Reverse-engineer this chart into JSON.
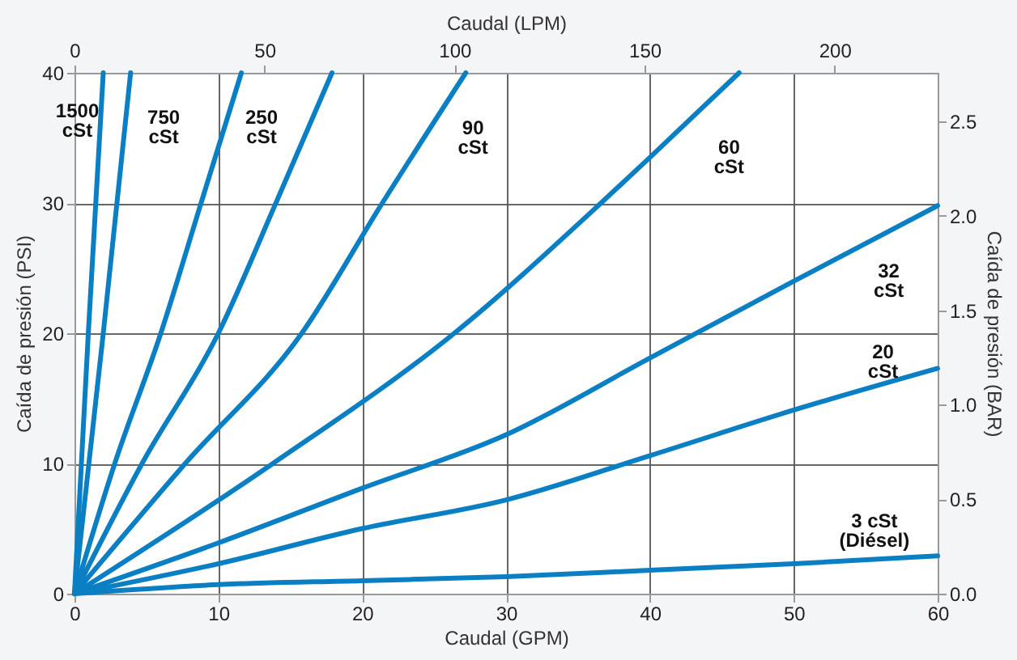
{
  "chart_data": {
    "type": "line",
    "xlabel": "Caudal (GPM)",
    "ylabel": "Caída de presión (PSI)",
    "y2label": "Caída de presión (BAR)",
    "x2label": "Caudal (LPM)",
    "xlim": [
      0,
      60
    ],
    "xticks": [
      0,
      10,
      20,
      30,
      40,
      50,
      60
    ],
    "ylim": [
      0,
      40
    ],
    "yticks": [
      0,
      10,
      20,
      30,
      40
    ],
    "x2lim": [
      0,
      227.1
    ],
    "x2ticks": [
      0,
      50,
      100,
      150,
      200
    ],
    "y2lim": [
      0,
      2.758
    ],
    "y2ticks": [
      {
        "value": 0,
        "label": "0.0"
      },
      {
        "value": 0.5,
        "label": "0.5"
      },
      {
        "value": 1,
        "label": "1.0"
      },
      {
        "value": 1.5,
        "label": "1.5"
      },
      {
        "value": 2,
        "label": "2.0"
      },
      {
        "value": 2.5,
        "label": "2.5"
      }
    ],
    "grid": true,
    "legend": false,
    "marker": "none",
    "line_style": "solid",
    "series": [
      {
        "color": "#0a7fc4",
        "x": [
          0,
          0.96,
          2.0
        ],
        "values": [
          0,
          20,
          40
        ]
      },
      {
        "color": "#0a7fc4",
        "x": [
          0,
          1.0,
          2.0,
          3.9
        ],
        "values": [
          0,
          10,
          20,
          40
        ]
      },
      {
        "color": "#0a7fc4",
        "x": [
          0,
          2.8,
          6.0,
          8.8,
          11.6
        ],
        "values": [
          0,
          10,
          20,
          30,
          40
        ]
      },
      {
        "color": "#0a7fc4",
        "x": [
          0,
          4.7,
          10.0,
          14.0,
          17.9
        ],
        "values": [
          0,
          10,
          20,
          30,
          40
        ]
      },
      {
        "color": "#0a7fc4",
        "x": [
          0,
          7.7,
          15.8,
          21.4,
          27.2
        ],
        "values": [
          0,
          10,
          20,
          30,
          40
        ]
      },
      {
        "color": "#0a7fc4",
        "x": [
          0,
          13.8,
          26.4,
          36.6,
          40,
          46.2
        ],
        "values": [
          0,
          10,
          20,
          30,
          33.5,
          40
        ]
      },
      {
        "color": "#0a7fc4",
        "x": [
          0,
          10,
          20,
          30,
          40,
          50,
          60
        ],
        "values": [
          0,
          3.9,
          8.1,
          12.2,
          18.1,
          24.0,
          29.8
        ]
      },
      {
        "color": "#0a7fc4",
        "x": [
          0,
          10,
          20,
          30,
          40,
          50,
          60
        ],
        "values": [
          0,
          2.3,
          5.0,
          7.2,
          10.6,
          14.1,
          17.3
        ]
      },
      {
        "color": "#0a7fc4",
        "x": [
          0,
          10,
          20,
          30,
          40,
          50,
          60
        ],
        "values": [
          0,
          0.7,
          1.0,
          1.3,
          1.8,
          2.3,
          2.9
        ]
      }
    ],
    "annotations": [
      "1500\ncSt",
      "750\ncSt",
      "250\ncSt",
      "90\ncSt",
      "60\ncSt",
      "32\ncSt",
      "20\ncSt",
      "3 cSt\n(Diésel)"
    ]
  }
}
